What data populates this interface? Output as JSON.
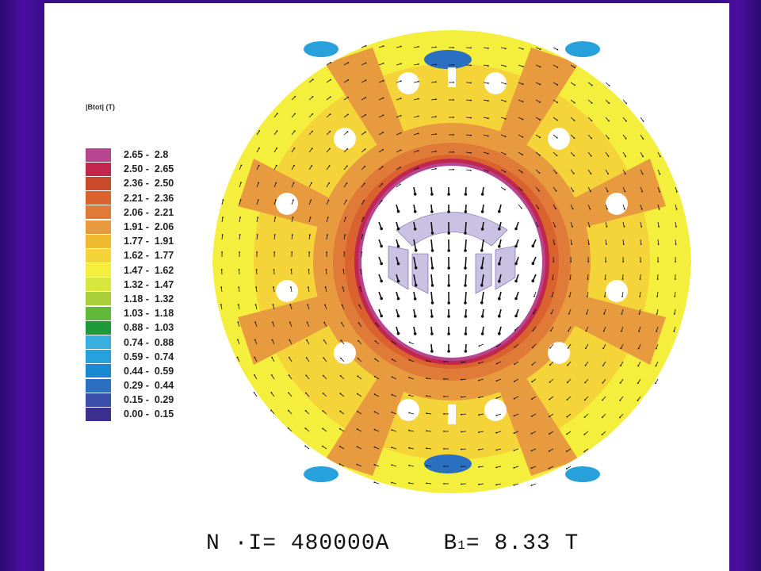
{
  "legend": {
    "title": "|Btot| (T)",
    "entries": [
      {
        "range": "2.65 -  2.8",
        "color": "#b5468f"
      },
      {
        "range": "2.50 -  2.65",
        "color": "#c0264e"
      },
      {
        "range": "2.36 -  2.50",
        "color": "#c9492a"
      },
      {
        "range": "2.21 -  2.36",
        "color": "#d9622e"
      },
      {
        "range": "2.06 -  2.21",
        "color": "#e07a38"
      },
      {
        "range": "1.91 -  2.06",
        "color": "#e89a3e"
      },
      {
        "range": "1.77 -  1.91",
        "color": "#f0ba30"
      },
      {
        "range": "1.62 -  1.77",
        "color": "#f5d43a"
      },
      {
        "range": "1.47 -  1.62",
        "color": "#f4ee3c"
      },
      {
        "range": "1.32 -  1.47",
        "color": "#d8e640"
      },
      {
        "range": "1.18 -  1.32",
        "color": "#a9cf3a"
      },
      {
        "range": "1.03 -  1.18",
        "color": "#62b83a"
      },
      {
        "range": "0.88 -  1.03",
        "color": "#1e9a3c"
      },
      {
        "range": "0.74 -  0.88",
        "color": "#3ab0e0"
      },
      {
        "range": "0.59 -  0.74",
        "color": "#27a0db"
      },
      {
        "range": "0.44 -  0.59",
        "color": "#1a8ad0"
      },
      {
        "range": "0.29 -  0.44",
        "color": "#2a6fc0"
      },
      {
        "range": "0.15 -  0.29",
        "color": "#3a4fa8"
      },
      {
        "range": "0.00 -  0.15",
        "color": "#3a2e8e"
      }
    ]
  },
  "formula": {
    "current": "N ·I= 480000A",
    "field_symbol": "B",
    "field_subscript": "1",
    "field_value": " = 8.33 T"
  },
  "colors": {
    "slide_bg": "#ffffff",
    "frame": "#3a0c8a"
  }
}
